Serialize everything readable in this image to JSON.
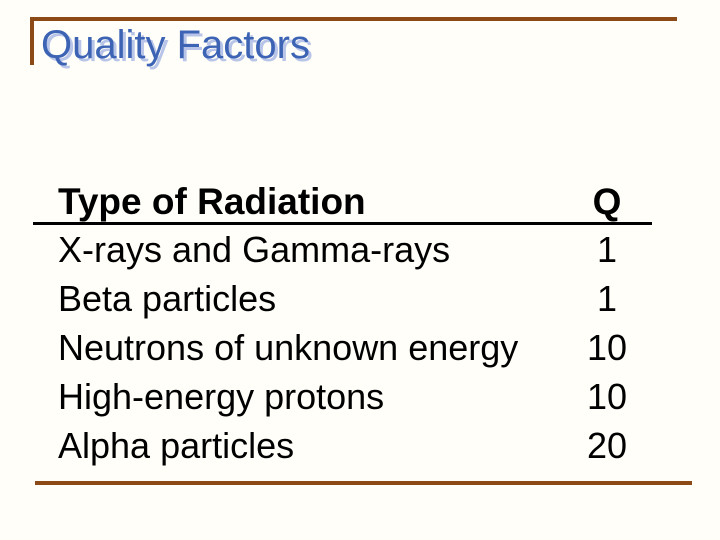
{
  "slide": {
    "title": "Quality Factors",
    "colors": {
      "accent_brown": "#8c4a17",
      "title_blue": "#3d64b4",
      "title_shadow": "#b8c5e8",
      "text_black": "#000000",
      "background": "#fffef8"
    }
  },
  "table": {
    "columns": [
      "Type of Radiation",
      "Q"
    ],
    "rows": [
      {
        "type": "X-rays and Gamma-rays",
        "q": "1"
      },
      {
        "type": "Beta particles",
        "q": "1"
      },
      {
        "type": "Neutrons of unknown energy",
        "q": "10"
      },
      {
        "type": "High-energy protons",
        "q": "10"
      },
      {
        "type": "Alpha particles",
        "q": "20"
      }
    ]
  }
}
